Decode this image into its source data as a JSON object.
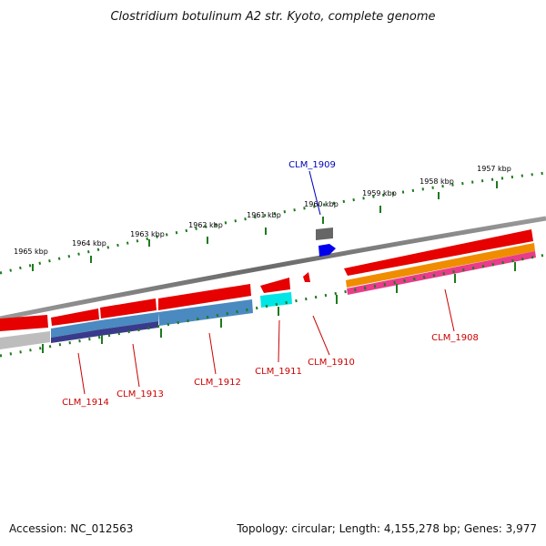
{
  "title": "Clostridium botulinum A2 str. Kyoto, complete genome",
  "footer": {
    "accession_label": "Accession: NC_012563",
    "summary": "Topology: circular; Length: 4,155,278 bp; Genes: 3,977"
  },
  "colors": {
    "backbone": "#7a7a7a",
    "tick": "#1e7a1e",
    "gene_label": "#cc0000",
    "highlight_label": "#0000bb",
    "red_gene": "#e60000",
    "blue_feature": "#4a8ac0",
    "purple_feature": "#3a3a8c",
    "cyan_feature": "#00e5e5",
    "orange_feature": "#f08c00",
    "pink_feature": "#e83c8c",
    "gray_feature": "#bdbdbd",
    "highlight_gene": "#0000ee",
    "dark_gray_feature": "#666666"
  },
  "kbp_labels": [
    "1957 kbp",
    "1958 kbp",
    "1959 kbp",
    "1960 kbp",
    "1961 kbp",
    "1962 kbp",
    "1963 kbp",
    "1964 kbp",
    "1965 kbp"
  ],
  "gene_labels": [
    "CLM_1909",
    "CLM_1908",
    "CLM_1910",
    "CLM_1911",
    "CLM_1912",
    "CLM_1913",
    "CLM_1914"
  ]
}
